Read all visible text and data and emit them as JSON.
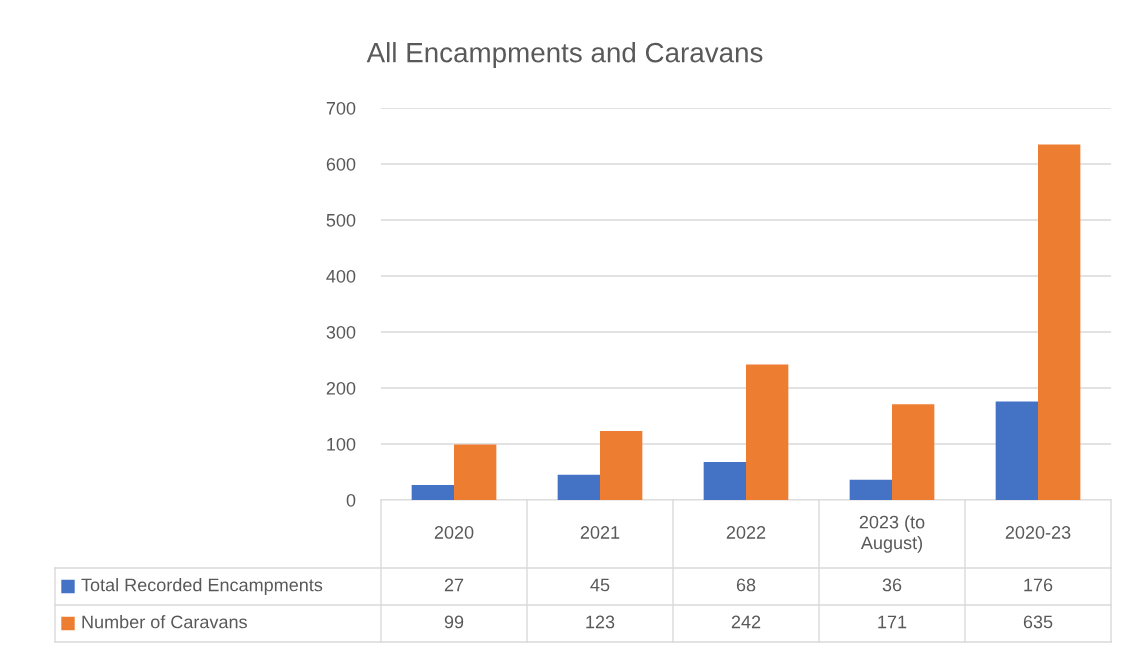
{
  "chart_data": {
    "type": "bar",
    "title": "All Encampments and Caravans",
    "categories": [
      "2020",
      "2021",
      "2022",
      "2023 (to\nAugust)",
      "2020-23"
    ],
    "series": [
      {
        "name": "Total Recorded Encampments",
        "color": "#4472c4",
        "values": [
          27,
          45,
          68,
          36,
          176
        ]
      },
      {
        "name": "Number of Caravans",
        "color": "#ed7d31",
        "values": [
          99,
          123,
          242,
          171,
          635
        ]
      }
    ],
    "ylim": [
      0,
      700
    ],
    "yticks": [
      0,
      100,
      200,
      300,
      400,
      500,
      600,
      700
    ],
    "grid": "y",
    "legend": "bottom",
    "data_labels": true
  }
}
